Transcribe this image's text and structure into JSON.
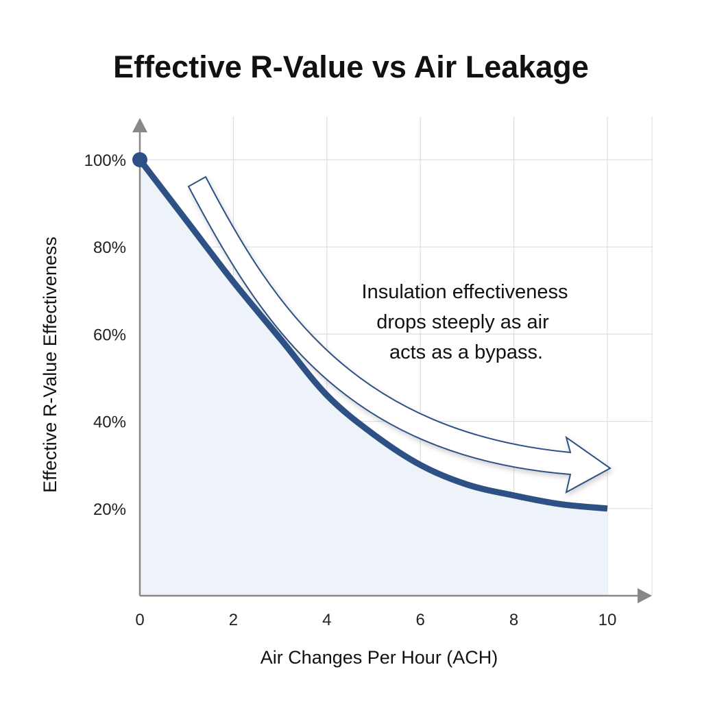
{
  "chart_data": {
    "type": "line",
    "title": "Effective R-Value vs Air Leakage",
    "xlabel": "Air Changes Per Hour (ACH)",
    "ylabel": "Effective R-Value Effectiveness",
    "xlim": [
      0,
      10
    ],
    "ylim": [
      0,
      100
    ],
    "x_ticks": [
      "0",
      "2",
      "4",
      "6",
      "8",
      "10"
    ],
    "y_ticks": [
      "20%",
      "40%",
      "60%",
      "80%",
      "100%"
    ],
    "grid": true,
    "x": [
      0,
      1,
      2,
      3,
      4,
      5,
      6,
      7,
      8,
      9,
      10
    ],
    "y": [
      100,
      86,
      72,
      59,
      46,
      37,
      30,
      25.5,
      23,
      21,
      20
    ],
    "line_color": "#2d5185",
    "fill_color": "#eef3f9",
    "annotation": [
      "Insulation effectiveness",
      "drops steeply as air",
      "acts as a bypass."
    ]
  }
}
